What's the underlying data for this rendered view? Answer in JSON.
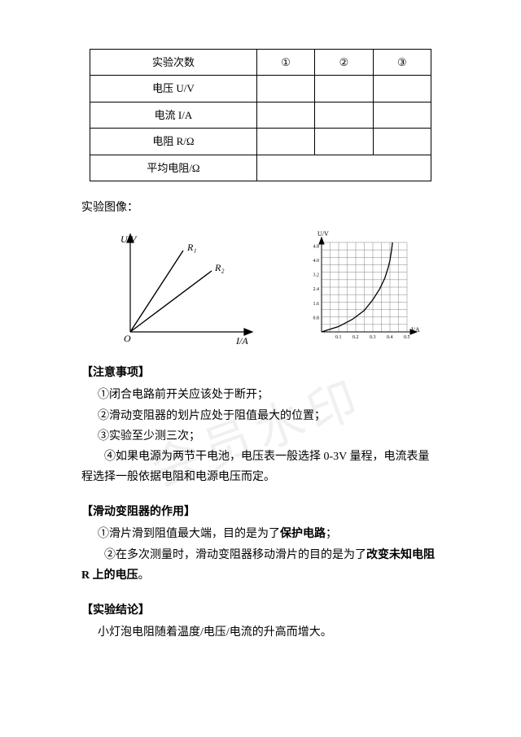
{
  "table": {
    "cols": [
      "实验次数",
      "①",
      "②",
      "③"
    ],
    "rows": [
      {
        "label": "电压 U/V",
        "cells": [
          "",
          "",
          ""
        ]
      },
      {
        "label": "电流 I/A",
        "cells": [
          "",
          "",
          ""
        ]
      },
      {
        "label": "电阻 R/Ω",
        "cells": [
          "",
          "",
          ""
        ]
      },
      {
        "label": "平均电阻/Ω",
        "span": 3,
        "cell": ""
      }
    ]
  },
  "sections": {
    "image_label": "实验图像：",
    "notes_title": "【注意事项】",
    "notes": [
      "①闭合电路前开关应该处于断开；",
      "②滑动变阻器的划片应处于阻值最大的位置；",
      "③实验至少测三次；",
      "④如果电源为两节干电池，电压表一般选择 0-3V 量程，电流表量程选择一般依据电阻和电源电压而定。"
    ],
    "rheostat_title": "【滑动变阻器的作用】",
    "rheostat": {
      "l1a": "①滑片滑到阻值最大端，目的是为了",
      "l1b": "保护电路",
      "l1c": "；",
      "l2a": "②在多次测量时，滑动变阻器移动滑片的目的是为了",
      "l2b": "改变未知电阻 R 上的电压",
      "l2c": "。"
    },
    "conclusion_title": "【实验结论】",
    "conclusion": "小灯泡电阻随着温度/电压/电流的升高而增大。"
  },
  "chart_left": {
    "type": "line",
    "y_label": "U/V",
    "x_label": "I/A",
    "origin_label": "O",
    "lines": [
      {
        "label": "R₁",
        "color": "#000",
        "slope_deg": 58
      },
      {
        "label": "R₂",
        "color": "#000",
        "slope_deg": 38
      }
    ],
    "stroke_width": 1.2
  },
  "chart_right": {
    "type": "grid-curve",
    "y_label": "U/V",
    "x_label": "I/A",
    "xlim": [
      0,
      0.5
    ],
    "ylim": [
      0,
      5
    ],
    "x_ticks": [
      "0.1",
      "0.2",
      "0.3",
      "0.4",
      "0.5"
    ],
    "y_ticks": [
      "0.8",
      "1.6",
      "2.4",
      "3.2",
      "4.0",
      "4.8"
    ],
    "grid_color": "#666",
    "curve_color": "#000",
    "background": "#fff",
    "tick_fontsize": 6,
    "curve_points": [
      [
        0,
        0
      ],
      [
        0.1,
        0.3
      ],
      [
        0.18,
        0.7
      ],
      [
        0.25,
        1.2
      ],
      [
        0.3,
        1.8
      ],
      [
        0.34,
        2.4
      ],
      [
        0.37,
        3.0
      ],
      [
        0.39,
        3.6
      ],
      [
        0.4,
        4.0
      ],
      [
        0.41,
        4.6
      ],
      [
        0.415,
        5.0
      ]
    ]
  },
  "watermark": "会员水印"
}
